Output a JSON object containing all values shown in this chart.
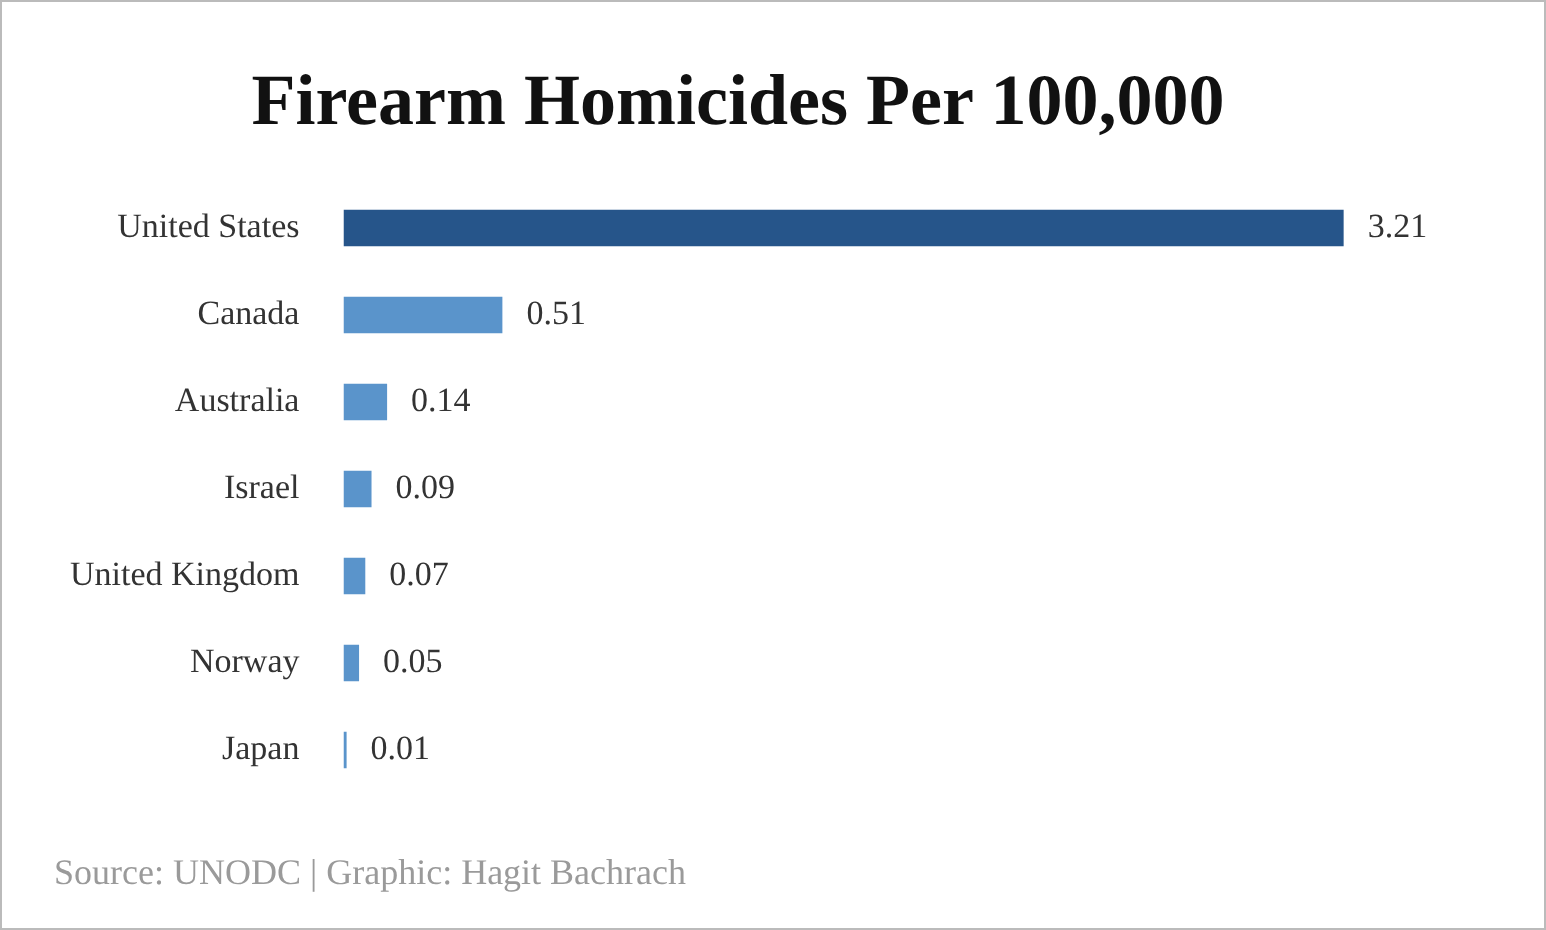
{
  "chart_data": {
    "type": "bar",
    "orientation": "horizontal",
    "title": "Firearm Homicides Per 100,000",
    "categories": [
      "United States",
      "Canada",
      "Australia",
      "Israel",
      "United Kingdom",
      "Norway",
      "Japan"
    ],
    "values": [
      3.21,
      0.51,
      0.14,
      0.09,
      0.07,
      0.05,
      0.01
    ],
    "colors": [
      "#26558a",
      "#5a94cb",
      "#5a94cb",
      "#5a94cb",
      "#5a94cb",
      "#5a94cb",
      "#5a94cb"
    ],
    "data_labels": true,
    "grid": false,
    "legend": false,
    "annotations": [
      "Source: UNODC | Graphic: Hagit Bachrach"
    ]
  }
}
